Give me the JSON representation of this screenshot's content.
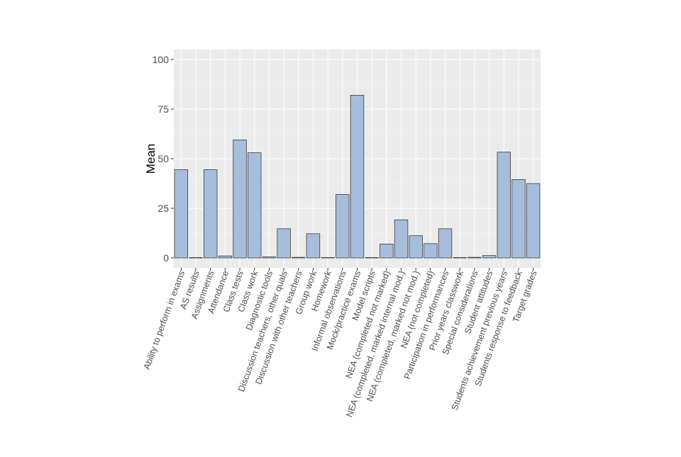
{
  "chart_data": {
    "type": "bar",
    "title": "",
    "xlabel": "",
    "ylabel": "Mean",
    "ylim": [
      -5,
      105
    ],
    "yticks": [
      0,
      25,
      50,
      75,
      100
    ],
    "grid": true,
    "legend": "none",
    "colors": {
      "bar_fill": "#a6bddc",
      "bar_stroke": "#3d3d3d",
      "panel_bg": "#ebebeb",
      "grid": "#ffffff",
      "text": "#4d4d4d"
    },
    "categories": [
      "Ability to perform in exams",
      "AS results",
      "Assignments",
      "Attendance",
      "Class tests",
      "Class work",
      "Diagnostic tools",
      "Discussion teachers, other quals",
      "Discussion with other teachers",
      "Group work",
      "Homework",
      "Informal observations",
      "Mock/practice exams",
      "Model scripts",
      "NEA (completed not marked)",
      "NEA (completed, marked internal mod.)",
      "NEA (completed, marked not mod.)",
      "NEA (not completed)",
      "Participation in performances",
      "Prior years classwork",
      "Special considerations",
      "Student attitudes",
      "Students achievement previous years",
      "Students response to feedback",
      "Target grades"
    ],
    "values": [
      44.5,
      0.2,
      44.5,
      1.0,
      59.5,
      53.0,
      0.5,
      14.7,
      0.3,
      12.2,
      0.2,
      32.0,
      82.0,
      0.2,
      7.0,
      19.2,
      11.2,
      7.2,
      14.7,
      0.2,
      0.3,
      1.2,
      53.3,
      39.5,
      37.5
    ]
  }
}
